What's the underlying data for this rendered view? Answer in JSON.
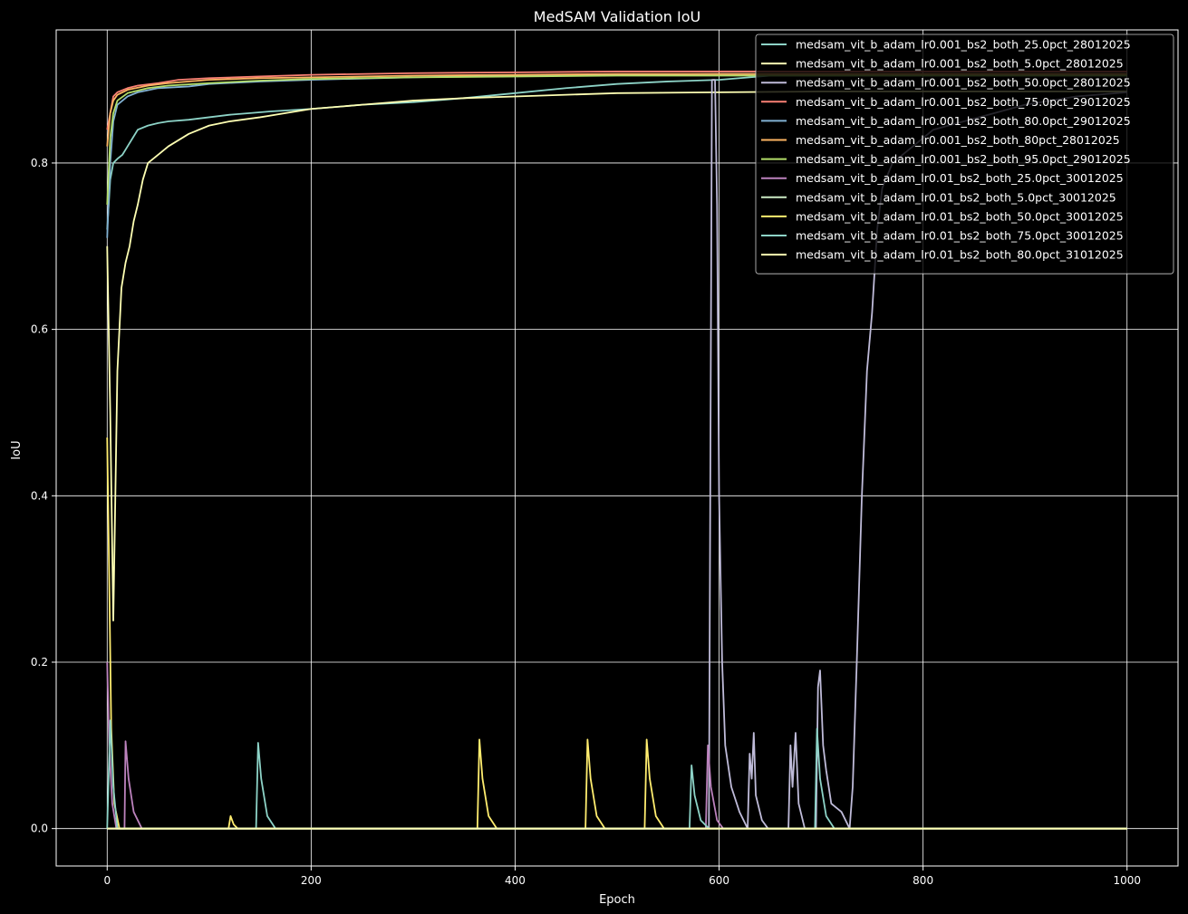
{
  "chart_data": {
    "type": "line",
    "title": "MedSAM Validation IoU",
    "xlabel": "Epoch",
    "ylabel": "IoU",
    "xlim": [
      -50,
      1050
    ],
    "ylim": [
      -0.045,
      0.96
    ],
    "xticks": [
      0,
      200,
      400,
      600,
      800,
      1000
    ],
    "yticks": [
      0.0,
      0.2,
      0.4,
      0.6,
      0.8
    ],
    "xtick_labels": [
      "0",
      "200",
      "400",
      "600",
      "800",
      "1000"
    ],
    "ytick_labels": [
      "0.0",
      "0.2",
      "0.4",
      "0.6",
      "0.8"
    ],
    "grid": true,
    "legend_position": "top-right",
    "background": "#000000",
    "series": [
      {
        "name": "medsam_vit_b_adam_lr0.001_bs2_both_25.0pct_28012025",
        "color": "#8dd3c7",
        "points": [
          [
            0,
            0.72
          ],
          [
            3,
            0.78
          ],
          [
            6,
            0.8
          ],
          [
            10,
            0.805
          ],
          [
            15,
            0.81
          ],
          [
            20,
            0.82
          ],
          [
            25,
            0.83
          ],
          [
            30,
            0.84
          ],
          [
            40,
            0.845
          ],
          [
            50,
            0.848
          ],
          [
            60,
            0.85
          ],
          [
            80,
            0.852
          ],
          [
            100,
            0.855
          ],
          [
            120,
            0.858
          ],
          [
            140,
            0.86
          ],
          [
            160,
            0.862
          ],
          [
            200,
            0.865
          ],
          [
            250,
            0.87
          ],
          [
            300,
            0.873
          ],
          [
            350,
            0.878
          ],
          [
            400,
            0.884
          ],
          [
            450,
            0.89
          ],
          [
            500,
            0.895
          ],
          [
            550,
            0.898
          ],
          [
            600,
            0.9
          ],
          [
            650,
            0.905
          ],
          [
            700,
            0.905
          ],
          [
            800,
            0.905
          ],
          [
            900,
            0.905
          ],
          [
            1000,
            0.905
          ]
        ]
      },
      {
        "name": "medsam_vit_b_adam_lr0.001_bs2_both_5.0pct_28012025",
        "color": "#feffb3",
        "points": [
          [
            0,
            0.7
          ],
          [
            3,
            0.5
          ],
          [
            6,
            0.25
          ],
          [
            10,
            0.55
          ],
          [
            14,
            0.65
          ],
          [
            18,
            0.68
          ],
          [
            22,
            0.7
          ],
          [
            26,
            0.73
          ],
          [
            30,
            0.75
          ],
          [
            35,
            0.78
          ],
          [
            40,
            0.8
          ],
          [
            50,
            0.81
          ],
          [
            60,
            0.82
          ],
          [
            80,
            0.835
          ],
          [
            100,
            0.845
          ],
          [
            120,
            0.85
          ],
          [
            150,
            0.855
          ],
          [
            200,
            0.865
          ],
          [
            250,
            0.87
          ],
          [
            300,
            0.875
          ],
          [
            350,
            0.878
          ],
          [
            400,
            0.88
          ],
          [
            450,
            0.882
          ],
          [
            500,
            0.884
          ],
          [
            600,
            0.885
          ],
          [
            700,
            0.886
          ],
          [
            800,
            0.886
          ],
          [
            900,
            0.886
          ],
          [
            1000,
            0.886
          ]
        ]
      },
      {
        "name": "medsam_vit_b_adam_lr0.001_bs2_both_50.0pct_28012025",
        "color": "#bfbbd9",
        "points": [
          [
            0,
            0.0
          ],
          [
            590,
            0.0
          ],
          [
            593,
            0.9
          ],
          [
            596,
            0.9
          ],
          [
            598,
            0.75
          ],
          [
            600,
            0.4
          ],
          [
            603,
            0.2
          ],
          [
            606,
            0.1
          ],
          [
            612,
            0.05
          ],
          [
            620,
            0.02
          ],
          [
            628,
            0.0
          ],
          [
            630,
            0.09
          ],
          [
            632,
            0.06
          ],
          [
            634,
            0.115
          ],
          [
            636,
            0.04
          ],
          [
            642,
            0.01
          ],
          [
            648,
            0.0
          ],
          [
            668,
            0.0
          ],
          [
            670,
            0.1
          ],
          [
            672,
            0.05
          ],
          [
            675,
            0.115
          ],
          [
            678,
            0.03
          ],
          [
            684,
            0.0
          ],
          [
            695,
            0.0
          ],
          [
            697,
            0.17
          ],
          [
            699,
            0.19
          ],
          [
            702,
            0.1
          ],
          [
            705,
            0.07
          ],
          [
            710,
            0.03
          ],
          [
            720,
            0.02
          ],
          [
            728,
            0.0
          ],
          [
            731,
            0.05
          ],
          [
            735,
            0.2
          ],
          [
            740,
            0.4
          ],
          [
            745,
            0.55
          ],
          [
            750,
            0.62
          ],
          [
            755,
            0.72
          ],
          [
            760,
            0.77
          ],
          [
            770,
            0.8
          ],
          [
            790,
            0.82
          ],
          [
            810,
            0.84
          ],
          [
            840,
            0.85
          ],
          [
            870,
            0.86
          ],
          [
            900,
            0.87
          ],
          [
            950,
            0.88
          ],
          [
            1000,
            0.885
          ]
        ]
      },
      {
        "name": "medsam_vit_b_adam_lr0.001_bs2_both_75.0pct_29012025",
        "color": "#fa8174",
        "points": [
          [
            0,
            0.84
          ],
          [
            3,
            0.86
          ],
          [
            6,
            0.88
          ],
          [
            10,
            0.885
          ],
          [
            20,
            0.89
          ],
          [
            30,
            0.893
          ],
          [
            50,
            0.896
          ],
          [
            70,
            0.9
          ],
          [
            100,
            0.902
          ],
          [
            150,
            0.904
          ],
          [
            200,
            0.906
          ],
          [
            300,
            0.908
          ],
          [
            400,
            0.909
          ],
          [
            500,
            0.91
          ],
          [
            600,
            0.91
          ],
          [
            700,
            0.91
          ],
          [
            800,
            0.91
          ],
          [
            900,
            0.91
          ],
          [
            1000,
            0.91
          ]
        ]
      },
      {
        "name": "medsam_vit_b_adam_lr0.001_bs2_both_80.0pct_29012025",
        "color": "#81b1d2",
        "points": [
          [
            0,
            0.71
          ],
          [
            3,
            0.8
          ],
          [
            6,
            0.85
          ],
          [
            10,
            0.87
          ],
          [
            20,
            0.88
          ],
          [
            30,
            0.885
          ],
          [
            50,
            0.89
          ],
          [
            80,
            0.892
          ],
          [
            100,
            0.895
          ],
          [
            150,
            0.898
          ],
          [
            200,
            0.9
          ],
          [
            300,
            0.903
          ],
          [
            400,
            0.905
          ],
          [
            500,
            0.906
          ],
          [
            600,
            0.907
          ],
          [
            700,
            0.907
          ],
          [
            800,
            0.907
          ],
          [
            900,
            0.907
          ],
          [
            1000,
            0.907
          ]
        ]
      },
      {
        "name": "medsam_vit_b_adam_lr0.001_bs2_both_80pct_28012025",
        "color": "#fdb462",
        "points": [
          [
            0,
            0.82
          ],
          [
            3,
            0.86
          ],
          [
            6,
            0.875
          ],
          [
            10,
            0.882
          ],
          [
            20,
            0.888
          ],
          [
            40,
            0.893
          ],
          [
            60,
            0.896
          ],
          [
            100,
            0.9
          ],
          [
            150,
            0.902
          ],
          [
            200,
            0.903
          ],
          [
            300,
            0.905
          ],
          [
            400,
            0.906
          ],
          [
            500,
            0.907
          ],
          [
            600,
            0.907
          ],
          [
            700,
            0.907
          ],
          [
            800,
            0.907
          ],
          [
            900,
            0.907
          ],
          [
            1000,
            0.907
          ]
        ]
      },
      {
        "name": "medsam_vit_b_adam_lr0.001_bs2_both_95.0pct_29012025",
        "color": "#b3de69",
        "points": [
          [
            0,
            0.75
          ],
          [
            3,
            0.83
          ],
          [
            6,
            0.86
          ],
          [
            10,
            0.875
          ],
          [
            20,
            0.884
          ],
          [
            40,
            0.89
          ],
          [
            60,
            0.893
          ],
          [
            100,
            0.896
          ],
          [
            150,
            0.899
          ],
          [
            200,
            0.901
          ],
          [
            300,
            0.903
          ],
          [
            400,
            0.904
          ],
          [
            500,
            0.905
          ],
          [
            600,
            0.905
          ],
          [
            700,
            0.905
          ],
          [
            800,
            0.905
          ],
          [
            900,
            0.905
          ],
          [
            1000,
            0.905
          ]
        ]
      },
      {
        "name": "medsam_vit_b_adam_lr0.01_bs2_both_25.0pct_30012025",
        "color": "#bc82bd",
        "points": [
          [
            0,
            0.2
          ],
          [
            2,
            0.1
          ],
          [
            5,
            0.03
          ],
          [
            9,
            0.0
          ],
          [
            17,
            0.0
          ],
          [
            18,
            0.105
          ],
          [
            21,
            0.06
          ],
          [
            26,
            0.02
          ],
          [
            34,
            0.0
          ],
          [
            587,
            0.0
          ],
          [
            589,
            0.1
          ],
          [
            592,
            0.05
          ],
          [
            598,
            0.01
          ],
          [
            604,
            0.0
          ],
          [
            1000,
            0.0
          ]
        ]
      },
      {
        "name": "medsam_vit_b_adam_lr0.01_bs2_both_5.0pct_30012025",
        "color": "#ccebc4",
        "points": [
          [
            0,
            0.0
          ],
          [
            1000,
            0.0
          ]
        ]
      },
      {
        "name": "medsam_vit_b_adam_lr0.01_bs2_both_50.0pct_30012025",
        "color": "#ffed6f",
        "points": [
          [
            0,
            0.47
          ],
          [
            2,
            0.3
          ],
          [
            4,
            0.12
          ],
          [
            7,
            0.03
          ],
          [
            12,
            0.0
          ],
          [
            119,
            0.0
          ],
          [
            121,
            0.015
          ],
          [
            124,
            0.005
          ],
          [
            128,
            0.0
          ],
          [
            363,
            0.0
          ],
          [
            365,
            0.107
          ],
          [
            368,
            0.06
          ],
          [
            374,
            0.015
          ],
          [
            382,
            0.0
          ],
          [
            469,
            0.0
          ],
          [
            471,
            0.107
          ],
          [
            474,
            0.06
          ],
          [
            480,
            0.015
          ],
          [
            488,
            0.0
          ],
          [
            527,
            0.0
          ],
          [
            529,
            0.107
          ],
          [
            532,
            0.06
          ],
          [
            538,
            0.015
          ],
          [
            546,
            0.0
          ],
          [
            1000,
            0.0
          ]
        ]
      },
      {
        "name": "medsam_vit_b_adam_lr0.01_bs2_both_75.0pct_30012025",
        "color": "#8dd3c7",
        "points": [
          [
            0,
            0.0
          ],
          [
            3,
            0.13
          ],
          [
            6,
            0.05
          ],
          [
            10,
            0.0
          ],
          [
            146,
            0.0
          ],
          [
            148,
            0.103
          ],
          [
            151,
            0.06
          ],
          [
            157,
            0.015
          ],
          [
            165,
            0.0
          ],
          [
            571,
            0.0
          ],
          [
            573,
            0.076
          ],
          [
            576,
            0.04
          ],
          [
            582,
            0.01
          ],
          [
            590,
            0.0
          ],
          [
            694,
            0.0
          ],
          [
            696,
            0.12
          ],
          [
            699,
            0.06
          ],
          [
            705,
            0.015
          ],
          [
            713,
            0.0
          ],
          [
            1000,
            0.0
          ]
        ]
      },
      {
        "name": "medsam_vit_b_adam_lr0.01_bs2_both_80.0pct_31012025",
        "color": "#ffffb3",
        "points": [
          [
            0,
            0.0
          ],
          [
            1000,
            0.0
          ]
        ]
      }
    ]
  }
}
